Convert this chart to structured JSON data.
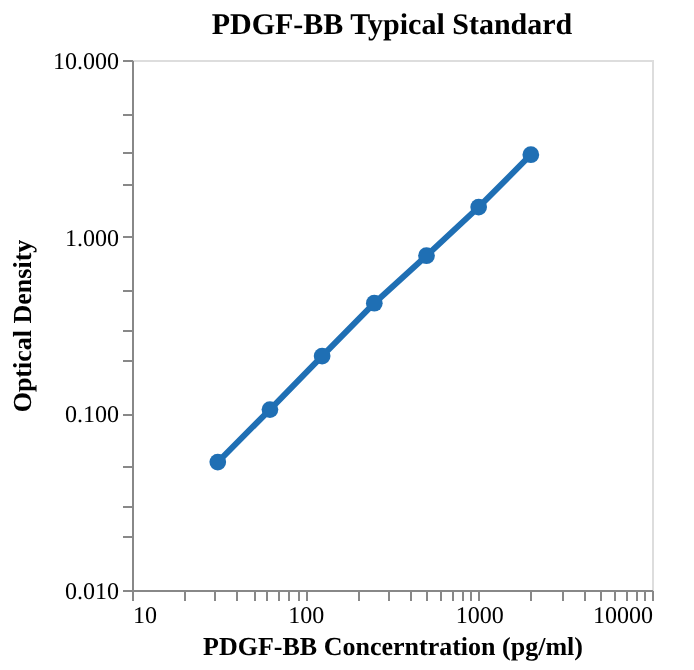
{
  "chart_data": {
    "type": "line",
    "title": "PDGF-BB Typical Standard",
    "xlabel": "PDGF-BB Concerntration (pg/ml)",
    "ylabel": "Optical Density",
    "x": [
      31.25,
      62.5,
      125,
      250,
      500,
      1000,
      2000
    ],
    "series": [
      {
        "color": "#1f6fb4",
        "values": [
          0.053,
          0.105,
          0.211,
          0.42,
          0.78,
          1.47,
          2.91
        ]
      }
    ],
    "log": "xy",
    "xlim": [
      10,
      10000
    ],
    "ylim": [
      0.01,
      10
    ],
    "xticks": [
      10,
      {
        "value": 20,
        "label": null
      },
      {
        "value": 30,
        "label": null
      },
      {
        "value": 40,
        "label": null
      },
      {
        "value": 50,
        "label": null
      },
      {
        "value": 60,
        "label": null
      },
      {
        "value": 70,
        "label": null
      },
      {
        "value": 80,
        "label": null
      },
      {
        "value": 90,
        "label": null
      },
      100,
      {
        "value": 200,
        "label": null
      },
      {
        "value": 300,
        "label": null
      },
      {
        "value": 400,
        "label": null
      },
      {
        "value": 500,
        "label": null
      },
      {
        "value": 600,
        "label": null
      },
      {
        "value": 700,
        "label": null
      },
      {
        "value": 800,
        "label": null
      },
      {
        "value": 900,
        "label": null
      },
      1000,
      {
        "value": 2000,
        "label": null
      },
      {
        "value": 3000,
        "label": null
      },
      {
        "value": 4000,
        "label": null
      },
      {
        "value": 5000,
        "label": null
      },
      {
        "value": 6000,
        "label": null
      },
      {
        "value": 7000,
        "label": null
      },
      {
        "value": 8000,
        "label": null
      },
      {
        "value": 9000,
        "label": null
      },
      10000
    ],
    "yticks": [
      {
        "value": 0.01,
        "label": "0.010"
      },
      {
        "value": 0.02,
        "label": null
      },
      {
        "value": 0.03,
        "label": null
      },
      {
        "value": 0.05,
        "label": null
      },
      {
        "value": 0.1,
        "label": "0.100"
      },
      {
        "value": 0.2,
        "label": null
      },
      {
        "value": 0.3,
        "label": null
      },
      {
        "value": 0.5,
        "label": null
      },
      {
        "value": 1,
        "label": "1.000"
      },
      {
        "value": 2,
        "label": null
      },
      {
        "value": 3,
        "label": null
      },
      {
        "value": 5,
        "label": null
      },
      {
        "value": 10,
        "label": "10.000"
      }
    ],
    "grid": false,
    "marker": "circle",
    "line_style": "solid"
  }
}
